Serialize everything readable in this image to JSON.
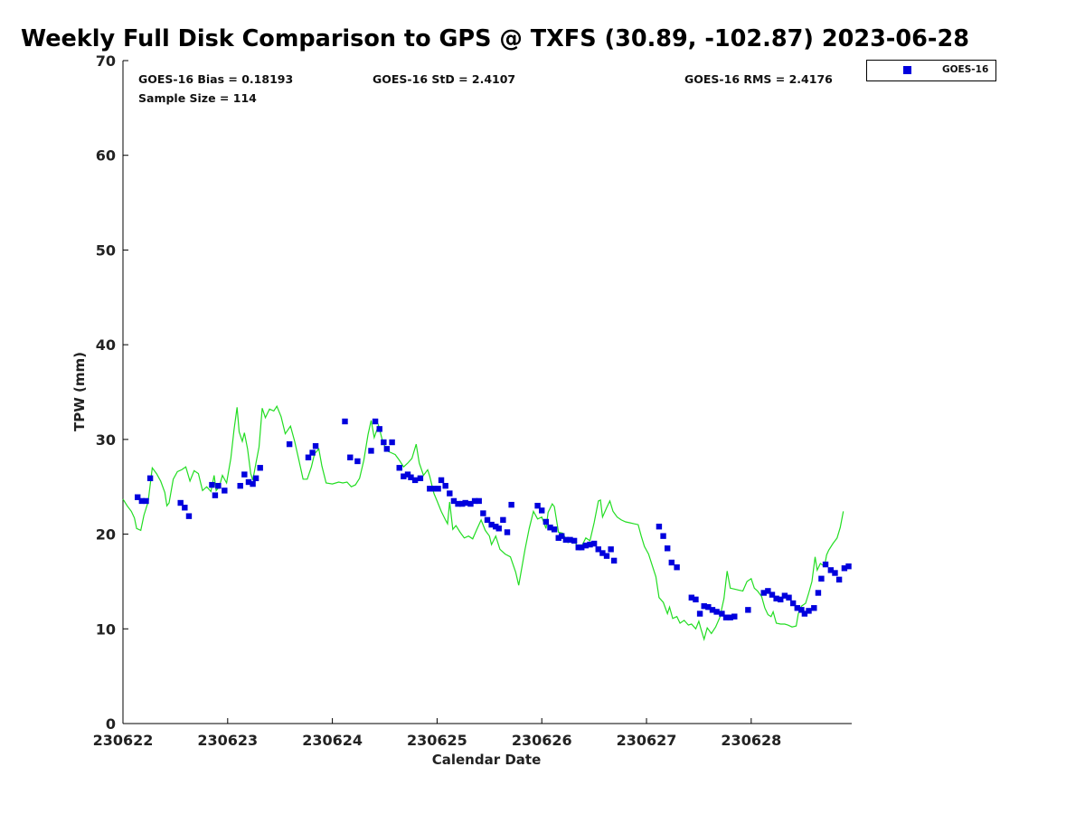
{
  "chart_data": {
    "type": "scatter",
    "title": "Weekly Full Disk Comparison to GPS @ TXFS (30.89, -102.87) 2023-06-28",
    "xlabel": "Calendar Date",
    "ylabel": "TPW (mm)",
    "xlim": [
      0,
      6.96
    ],
    "ylim": [
      0,
      70
    ],
    "x_ticks": [
      0,
      1,
      2,
      3,
      4,
      5,
      6
    ],
    "x_tick_labels": [
      "230622",
      "230623",
      "230624",
      "230625",
      "230626",
      "230627",
      "230628"
    ],
    "y_ticks": [
      0,
      10,
      20,
      30,
      40,
      50,
      60,
      70
    ],
    "y_tick_labels": [
      "0",
      "10",
      "20",
      "30",
      "40",
      "50",
      "60",
      "70"
    ],
    "grid": false,
    "legend_position": "outside-top-right",
    "stats": {
      "bias": "GOES-16 Bias = 0.18193",
      "std": "GOES-16 StD = 2.4107",
      "rms": "GOES-16 RMS = 2.4176",
      "sample": "Sample Size = 114"
    },
    "legend": {
      "label": "GOES-16"
    },
    "colors": {
      "goes": "#0000dd",
      "gps": "#22dd22"
    },
    "series": [
      {
        "name": "GOES-16",
        "marker": "square",
        "points": [
          [
            0.14,
            23.9
          ],
          [
            0.18,
            23.5
          ],
          [
            0.22,
            23.5
          ],
          [
            0.26,
            25.9
          ],
          [
            0.55,
            23.3
          ],
          [
            0.59,
            22.8
          ],
          [
            0.63,
            21.9
          ],
          [
            0.85,
            25.2
          ],
          [
            0.88,
            24.1
          ],
          [
            0.91,
            25.1
          ],
          [
            0.97,
            24.6
          ],
          [
            1.12,
            25.1
          ],
          [
            1.16,
            26.3
          ],
          [
            1.2,
            25.5
          ],
          [
            1.24,
            25.3
          ],
          [
            1.27,
            25.9
          ],
          [
            1.31,
            27.0
          ],
          [
            1.59,
            29.5
          ],
          [
            1.77,
            28.1
          ],
          [
            1.81,
            28.6
          ],
          [
            1.84,
            29.3
          ],
          [
            2.12,
            31.9
          ],
          [
            2.17,
            28.1
          ],
          [
            2.24,
            27.7
          ],
          [
            2.37,
            28.8
          ],
          [
            2.41,
            31.9
          ],
          [
            2.45,
            31.1
          ],
          [
            2.49,
            29.7
          ],
          [
            2.52,
            29.0
          ],
          [
            2.57,
            29.7
          ],
          [
            2.64,
            27.0
          ],
          [
            2.68,
            26.1
          ],
          [
            2.72,
            26.3
          ],
          [
            2.75,
            26.0
          ],
          [
            2.79,
            25.7
          ],
          [
            2.84,
            25.9
          ],
          [
            2.93,
            24.8
          ],
          [
            2.97,
            24.8
          ],
          [
            3.01,
            24.8
          ],
          [
            3.04,
            25.7
          ],
          [
            3.08,
            25.1
          ],
          [
            3.12,
            24.3
          ],
          [
            3.16,
            23.5
          ],
          [
            3.2,
            23.2
          ],
          [
            3.24,
            23.2
          ],
          [
            3.27,
            23.3
          ],
          [
            3.32,
            23.2
          ],
          [
            3.36,
            23.5
          ],
          [
            3.4,
            23.5
          ],
          [
            3.44,
            22.2
          ],
          [
            3.48,
            21.5
          ],
          [
            3.52,
            21.0
          ],
          [
            3.56,
            20.8
          ],
          [
            3.59,
            20.6
          ],
          [
            3.63,
            21.5
          ],
          [
            3.67,
            20.2
          ],
          [
            3.71,
            23.1
          ],
          [
            3.96,
            23.0
          ],
          [
            4.0,
            22.5
          ],
          [
            4.04,
            21.3
          ],
          [
            4.08,
            20.7
          ],
          [
            4.12,
            20.5
          ],
          [
            4.16,
            19.6
          ],
          [
            4.19,
            19.8
          ],
          [
            4.23,
            19.4
          ],
          [
            4.27,
            19.4
          ],
          [
            4.31,
            19.3
          ],
          [
            4.35,
            18.6
          ],
          [
            4.38,
            18.6
          ],
          [
            4.42,
            18.8
          ],
          [
            4.46,
            18.9
          ],
          [
            4.5,
            19.0
          ],
          [
            4.54,
            18.4
          ],
          [
            4.58,
            18.0
          ],
          [
            4.62,
            17.7
          ],
          [
            4.66,
            18.4
          ],
          [
            4.69,
            17.2
          ],
          [
            5.12,
            20.8
          ],
          [
            5.16,
            19.8
          ],
          [
            5.2,
            18.5
          ],
          [
            5.24,
            17.0
          ],
          [
            5.29,
            16.5
          ],
          [
            5.43,
            13.3
          ],
          [
            5.47,
            13.1
          ],
          [
            5.51,
            11.6
          ],
          [
            5.55,
            12.4
          ],
          [
            5.59,
            12.3
          ],
          [
            5.63,
            12.0
          ],
          [
            5.67,
            11.8
          ],
          [
            5.72,
            11.6
          ],
          [
            5.76,
            11.2
          ],
          [
            5.8,
            11.2
          ],
          [
            5.84,
            11.3
          ],
          [
            5.97,
            12.0
          ],
          [
            6.12,
            13.8
          ],
          [
            6.16,
            14.0
          ],
          [
            6.2,
            13.6
          ],
          [
            6.24,
            13.2
          ],
          [
            6.28,
            13.1
          ],
          [
            6.32,
            13.5
          ],
          [
            6.36,
            13.3
          ],
          [
            6.4,
            12.7
          ],
          [
            6.44,
            12.2
          ],
          [
            6.48,
            12.0
          ],
          [
            6.51,
            11.6
          ],
          [
            6.55,
            11.9
          ],
          [
            6.6,
            12.2
          ],
          [
            6.64,
            13.8
          ],
          [
            6.67,
            15.3
          ],
          [
            6.71,
            16.8
          ],
          [
            6.76,
            16.2
          ],
          [
            6.8,
            15.9
          ],
          [
            6.84,
            15.2
          ],
          [
            6.89,
            16.4
          ],
          [
            6.93,
            16.6
          ]
        ]
      },
      {
        "name": "",
        "marker": "line",
        "points": [
          [
            0.0,
            23.7
          ],
          [
            0.04,
            23.0
          ],
          [
            0.08,
            22.4
          ],
          [
            0.11,
            21.7
          ],
          [
            0.13,
            20.6
          ],
          [
            0.17,
            20.4
          ],
          [
            0.2,
            22.0
          ],
          [
            0.24,
            23.4
          ],
          [
            0.28,
            27.0
          ],
          [
            0.32,
            26.4
          ],
          [
            0.36,
            25.6
          ],
          [
            0.4,
            24.4
          ],
          [
            0.42,
            23.0
          ],
          [
            0.44,
            23.3
          ],
          [
            0.48,
            25.8
          ],
          [
            0.52,
            26.6
          ],
          [
            0.56,
            26.8
          ],
          [
            0.6,
            27.1
          ],
          [
            0.64,
            25.6
          ],
          [
            0.68,
            26.7
          ],
          [
            0.72,
            26.4
          ],
          [
            0.76,
            24.6
          ],
          [
            0.8,
            25.0
          ],
          [
            0.84,
            24.5
          ],
          [
            0.87,
            26.2
          ],
          [
            0.89,
            24.6
          ],
          [
            0.92,
            25.0
          ],
          [
            0.95,
            26.2
          ],
          [
            0.99,
            25.4
          ],
          [
            1.03,
            28.0
          ],
          [
            1.06,
            31.0
          ],
          [
            1.09,
            33.4
          ],
          [
            1.11,
            30.8
          ],
          [
            1.14,
            29.8
          ],
          [
            1.16,
            30.7
          ],
          [
            1.19,
            29.0
          ],
          [
            1.22,
            26.4
          ],
          [
            1.24,
            25.7
          ],
          [
            1.27,
            27.5
          ],
          [
            1.3,
            29.2
          ],
          [
            1.33,
            33.3
          ],
          [
            1.36,
            32.3
          ],
          [
            1.4,
            33.2
          ],
          [
            1.44,
            33.0
          ],
          [
            1.47,
            33.5
          ],
          [
            1.51,
            32.4
          ],
          [
            1.55,
            30.6
          ],
          [
            1.6,
            31.4
          ],
          [
            1.64,
            29.8
          ],
          [
            1.68,
            27.8
          ],
          [
            1.72,
            25.8
          ],
          [
            1.76,
            25.8
          ],
          [
            1.8,
            27.1
          ],
          [
            1.83,
            28.5
          ],
          [
            1.87,
            29.0
          ],
          [
            1.9,
            27.2
          ],
          [
            1.94,
            25.4
          ],
          [
            2.0,
            25.3
          ],
          [
            2.06,
            25.5
          ],
          [
            2.1,
            25.4
          ],
          [
            2.14,
            25.5
          ],
          [
            2.18,
            25.0
          ],
          [
            2.22,
            25.2
          ],
          [
            2.26,
            25.9
          ],
          [
            2.3,
            27.8
          ],
          [
            2.34,
            30.5
          ],
          [
            2.37,
            32.0
          ],
          [
            2.4,
            30.2
          ],
          [
            2.44,
            31.5
          ],
          [
            2.48,
            29.8
          ],
          [
            2.52,
            28.8
          ],
          [
            2.56,
            28.6
          ],
          [
            2.6,
            28.4
          ],
          [
            2.64,
            27.8
          ],
          [
            2.68,
            27.1
          ],
          [
            2.72,
            27.5
          ],
          [
            2.76,
            28.0
          ],
          [
            2.8,
            29.5
          ],
          [
            2.83,
            27.5
          ],
          [
            2.87,
            26.2
          ],
          [
            2.91,
            26.8
          ],
          [
            2.93,
            26.1
          ],
          [
            2.97,
            24.3
          ],
          [
            3.0,
            23.5
          ],
          [
            3.04,
            22.4
          ],
          [
            3.08,
            21.5
          ],
          [
            3.1,
            21.1
          ],
          [
            3.12,
            23.4
          ],
          [
            3.15,
            20.5
          ],
          [
            3.18,
            20.9
          ],
          [
            3.22,
            20.2
          ],
          [
            3.26,
            19.6
          ],
          [
            3.3,
            19.8
          ],
          [
            3.34,
            19.5
          ],
          [
            3.38,
            20.5
          ],
          [
            3.42,
            21.5
          ],
          [
            3.46,
            20.4
          ],
          [
            3.5,
            19.8
          ],
          [
            3.52,
            18.9
          ],
          [
            3.56,
            19.8
          ],
          [
            3.6,
            18.4
          ],
          [
            3.65,
            17.9
          ],
          [
            3.7,
            17.6
          ],
          [
            3.75,
            16.0
          ],
          [
            3.78,
            14.6
          ],
          [
            3.8,
            15.9
          ],
          [
            3.84,
            18.4
          ],
          [
            3.88,
            20.6
          ],
          [
            3.92,
            22.4
          ],
          [
            3.96,
            21.6
          ],
          [
            4.0,
            21.8
          ],
          [
            4.04,
            20.6
          ],
          [
            4.06,
            22.3
          ],
          [
            4.1,
            23.2
          ],
          [
            4.12,
            22.9
          ],
          [
            4.16,
            20.2
          ],
          [
            4.2,
            20.1
          ],
          [
            4.25,
            19.1
          ],
          [
            4.3,
            19.4
          ],
          [
            4.35,
            18.6
          ],
          [
            4.38,
            18.7
          ],
          [
            4.42,
            19.6
          ],
          [
            4.46,
            19.3
          ],
          [
            4.5,
            21.2
          ],
          [
            4.54,
            23.5
          ],
          [
            4.56,
            23.6
          ],
          [
            4.58,
            21.8
          ],
          [
            4.62,
            22.8
          ],
          [
            4.65,
            23.5
          ],
          [
            4.68,
            22.4
          ],
          [
            4.72,
            21.8
          ],
          [
            4.76,
            21.5
          ],
          [
            4.8,
            21.3
          ],
          [
            4.84,
            21.2
          ],
          [
            4.88,
            21.1
          ],
          [
            4.92,
            21.0
          ],
          [
            4.95,
            19.8
          ],
          [
            4.98,
            18.7
          ],
          [
            5.02,
            17.9
          ],
          [
            5.06,
            16.5
          ],
          [
            5.09,
            15.5
          ],
          [
            5.12,
            13.3
          ],
          [
            5.16,
            12.8
          ],
          [
            5.2,
            11.6
          ],
          [
            5.22,
            12.3
          ],
          [
            5.25,
            11.1
          ],
          [
            5.29,
            11.3
          ],
          [
            5.32,
            10.6
          ],
          [
            5.36,
            10.9
          ],
          [
            5.4,
            10.4
          ],
          [
            5.43,
            10.5
          ],
          [
            5.47,
            10.0
          ],
          [
            5.5,
            10.8
          ],
          [
            5.52,
            10.0
          ],
          [
            5.55,
            8.9
          ],
          [
            5.58,
            10.1
          ],
          [
            5.62,
            9.5
          ],
          [
            5.66,
            10.2
          ],
          [
            5.7,
            11.2
          ],
          [
            5.74,
            13.2
          ],
          [
            5.77,
            16.1
          ],
          [
            5.8,
            14.3
          ],
          [
            5.84,
            14.2
          ],
          [
            5.88,
            14.1
          ],
          [
            5.92,
            14.0
          ],
          [
            5.96,
            15.0
          ],
          [
            6.0,
            15.3
          ],
          [
            6.03,
            14.3
          ],
          [
            6.06,
            14.0
          ],
          [
            6.1,
            13.4
          ],
          [
            6.13,
            12.2
          ],
          [
            6.16,
            11.5
          ],
          [
            6.19,
            11.3
          ],
          [
            6.21,
            11.8
          ],
          [
            6.24,
            10.6
          ],
          [
            6.28,
            10.5
          ],
          [
            6.32,
            10.5
          ],
          [
            6.35,
            10.4
          ],
          [
            6.39,
            10.2
          ],
          [
            6.43,
            10.3
          ],
          [
            6.45,
            11.6
          ],
          [
            6.48,
            12.4
          ],
          [
            6.52,
            12.7
          ],
          [
            6.55,
            13.8
          ],
          [
            6.58,
            15.0
          ],
          [
            6.61,
            17.6
          ],
          [
            6.63,
            16.2
          ],
          [
            6.66,
            16.9
          ],
          [
            6.7,
            16.6
          ],
          [
            6.72,
            17.8
          ],
          [
            6.74,
            18.3
          ],
          [
            6.78,
            19.0
          ],
          [
            6.82,
            19.6
          ],
          [
            6.85,
            20.7
          ],
          [
            6.88,
            22.4
          ]
        ]
      }
    ]
  }
}
